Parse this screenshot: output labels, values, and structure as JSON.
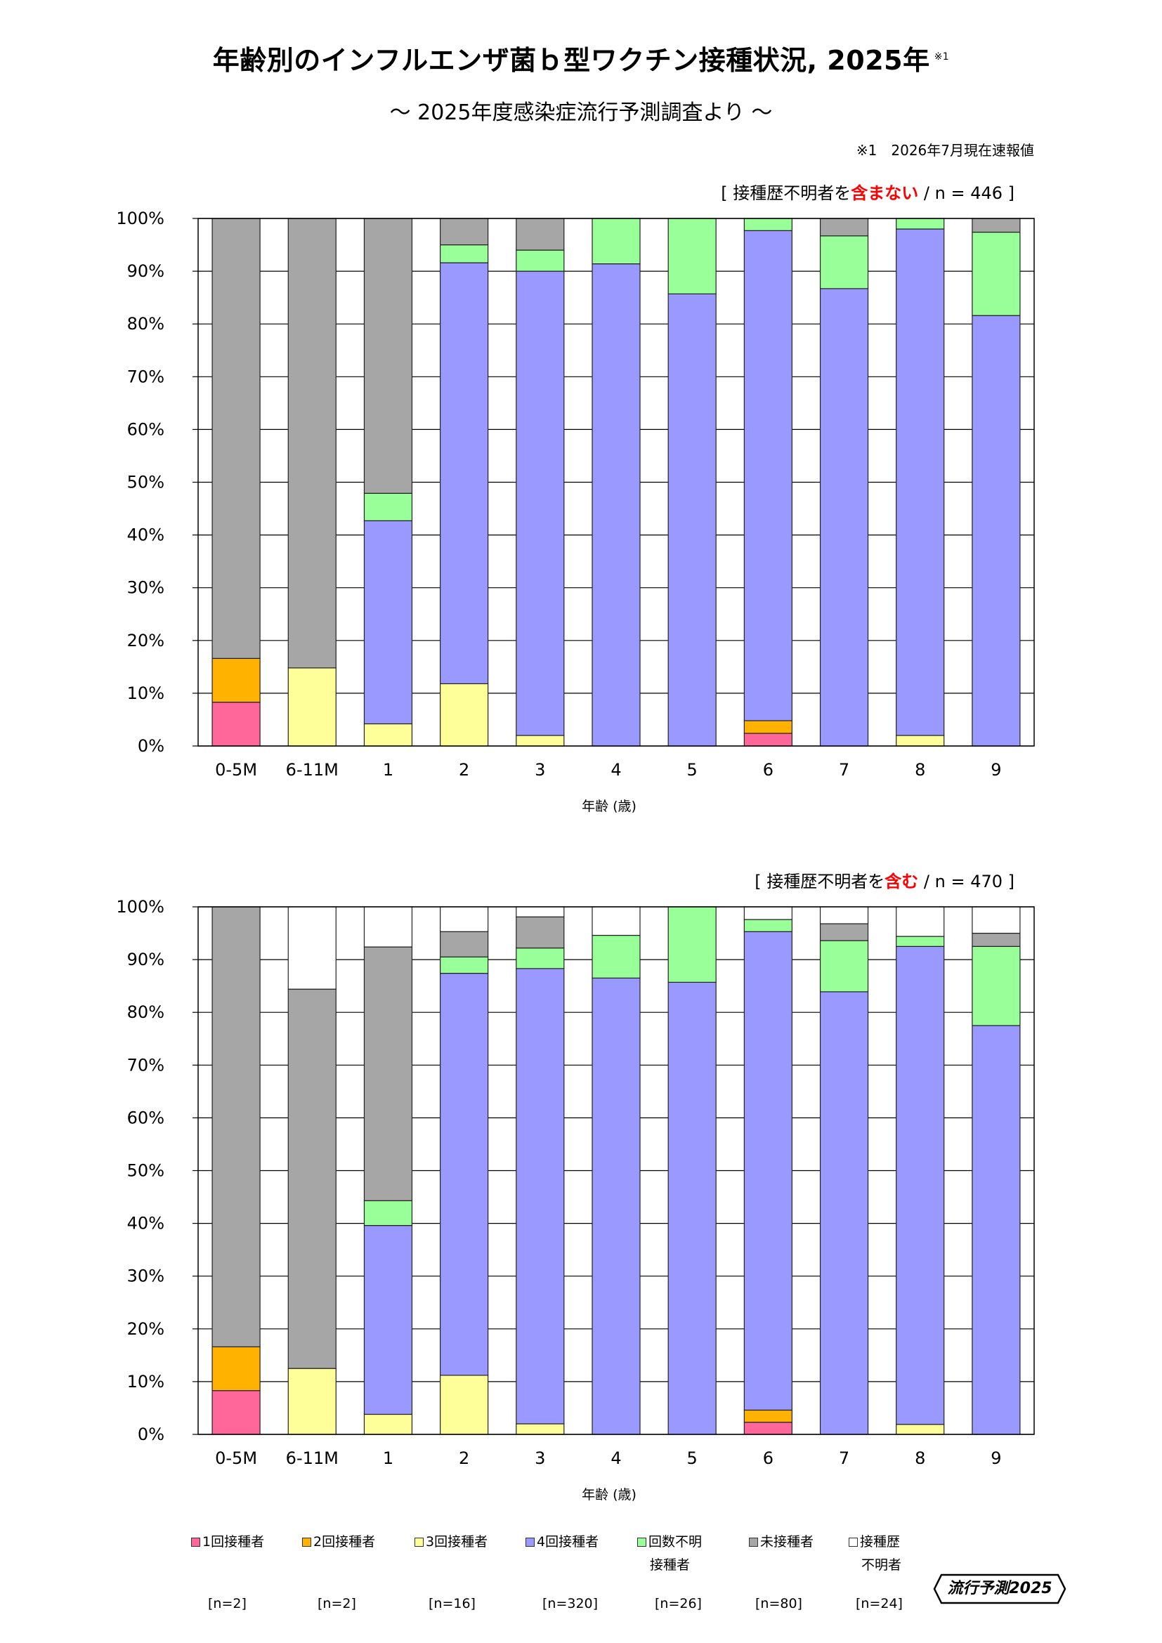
{
  "title": "年齢別のインフルエンザ菌ｂ型ワクチン接種状況, 2025年",
  "title_mark": "※1",
  "subtitle": "～ 2025年度感染症流行予測調査より ～",
  "footnote": "※1　2026年7月現在速報値",
  "colors": {
    "dose1": "#ff6699",
    "dose2": "#ffb300",
    "dose3": "#ffff99",
    "dose4": "#9999ff",
    "unknown_doses": "#99ff99",
    "unvaccinated": "#a6a6a6",
    "history_unknown": "#ffffff",
    "emphasis": "#ff0000"
  },
  "legend": [
    {
      "key": "dose1",
      "label": "1回接種者",
      "label2": "",
      "n": "[n=2]"
    },
    {
      "key": "dose2",
      "label": "2回接種者",
      "label2": "",
      "n": "[n=2]"
    },
    {
      "key": "dose3",
      "label": "3回接種者",
      "label2": "",
      "n": "[n=16]"
    },
    {
      "key": "dose4",
      "label": "4回接種者",
      "label2": "",
      "n": "[n=320]"
    },
    {
      "key": "unknown_doses",
      "label": "回数不明",
      "label2": "接種者",
      "n": "[n=26]"
    },
    {
      "key": "unvaccinated",
      "label": "未接種者",
      "label2": "",
      "n": "[n=80]"
    },
    {
      "key": "history_unknown",
      "label": "接種歴",
      "label2": "不明者",
      "n": "[n=24]"
    }
  ],
  "logo": {
    "text": "流行予測2025"
  },
  "chart_data": [
    {
      "type": "bar",
      "stacked": true,
      "note": {
        "prefix": "[ 接種歴不明者を",
        "emphasis": "含まない",
        "suffix": " / n = 446 ]"
      },
      "xlabel": "年齢 (歳)",
      "ylabel": "",
      "ylim": [
        0,
        100
      ],
      "yticks": [
        "0%",
        "10%",
        "20%",
        "30%",
        "40%",
        "50%",
        "60%",
        "70%",
        "80%",
        "90%",
        "100%"
      ],
      "categories": [
        "0-5M",
        "6-11M",
        "1",
        "2",
        "3",
        "4",
        "5",
        "6",
        "7",
        "8",
        "9"
      ],
      "series": [
        {
          "name": "1回接種者",
          "key": "dose1",
          "values": [
            8.3,
            0,
            0,
            0,
            0,
            0,
            0,
            2.4,
            0,
            0,
            0
          ]
        },
        {
          "name": "2回接種者",
          "key": "dose2",
          "values": [
            8.3,
            0,
            0,
            0,
            0,
            0,
            0,
            2.4,
            0,
            0,
            0
          ]
        },
        {
          "name": "3回接種者",
          "key": "dose3",
          "values": [
            0,
            14.8,
            4.2,
            11.8,
            2.0,
            0,
            0,
            0,
            0,
            2.0,
            0
          ]
        },
        {
          "name": "4回接種者",
          "key": "dose4",
          "values": [
            0,
            0,
            38.5,
            79.8,
            88.0,
            91.4,
            85.7,
            92.9,
            86.7,
            96.0,
            81.6
          ]
        },
        {
          "name": "回数不明接種者",
          "key": "unknown_doses",
          "values": [
            0,
            0,
            5.2,
            3.4,
            4.0,
            8.6,
            14.3,
            2.3,
            10.0,
            2.0,
            15.8
          ]
        },
        {
          "name": "未接種者",
          "key": "unvaccinated",
          "values": [
            83.4,
            85.2,
            52.1,
            5.0,
            6.0,
            0,
            0,
            0,
            3.3,
            0,
            2.6
          ]
        }
      ]
    },
    {
      "type": "bar",
      "stacked": true,
      "note": {
        "prefix": "[ 接種歴不明者を",
        "emphasis": "含む",
        "suffix": " / n = 470 ]"
      },
      "xlabel": "年齢 (歳)",
      "ylabel": "",
      "ylim": [
        0,
        100
      ],
      "yticks": [
        "0%",
        "10%",
        "20%",
        "30%",
        "40%",
        "50%",
        "60%",
        "70%",
        "80%",
        "90%",
        "100%"
      ],
      "categories": [
        "0-5M",
        "6-11M",
        "1",
        "2",
        "3",
        "4",
        "5",
        "6",
        "7",
        "8",
        "9"
      ],
      "series": [
        {
          "name": "1回接種者",
          "key": "dose1",
          "values": [
            8.3,
            0,
            0,
            0,
            0,
            0,
            0,
            2.3,
            0,
            0,
            0
          ]
        },
        {
          "name": "2回接種者",
          "key": "dose2",
          "values": [
            8.3,
            0,
            0,
            0,
            0,
            0,
            0,
            2.3,
            0,
            0,
            0
          ]
        },
        {
          "name": "3回接種者",
          "key": "dose3",
          "values": [
            0,
            12.5,
            3.8,
            11.2,
            2.0,
            0,
            0,
            0,
            0,
            1.9,
            0
          ]
        },
        {
          "name": "4回接種者",
          "key": "dose4",
          "values": [
            0,
            0,
            35.8,
            76.2,
            86.3,
            86.5,
            85.7,
            90.7,
            83.9,
            90.6,
            77.5
          ]
        },
        {
          "name": "回数不明接種者",
          "key": "unknown_doses",
          "values": [
            0,
            0,
            4.7,
            3.1,
            3.9,
            8.1,
            14.3,
            2.3,
            9.7,
            1.9,
            15.0
          ]
        },
        {
          "name": "未接種者",
          "key": "unvaccinated",
          "values": [
            83.4,
            71.9,
            48.1,
            4.8,
            5.9,
            0,
            0,
            0,
            3.2,
            0,
            2.5
          ]
        },
        {
          "name": "接種歴不明者",
          "key": "history_unknown",
          "values": [
            0,
            15.6,
            7.6,
            4.7,
            1.9,
            5.4,
            0,
            2.4,
            3.2,
            5.6,
            5.0
          ]
        }
      ]
    }
  ]
}
